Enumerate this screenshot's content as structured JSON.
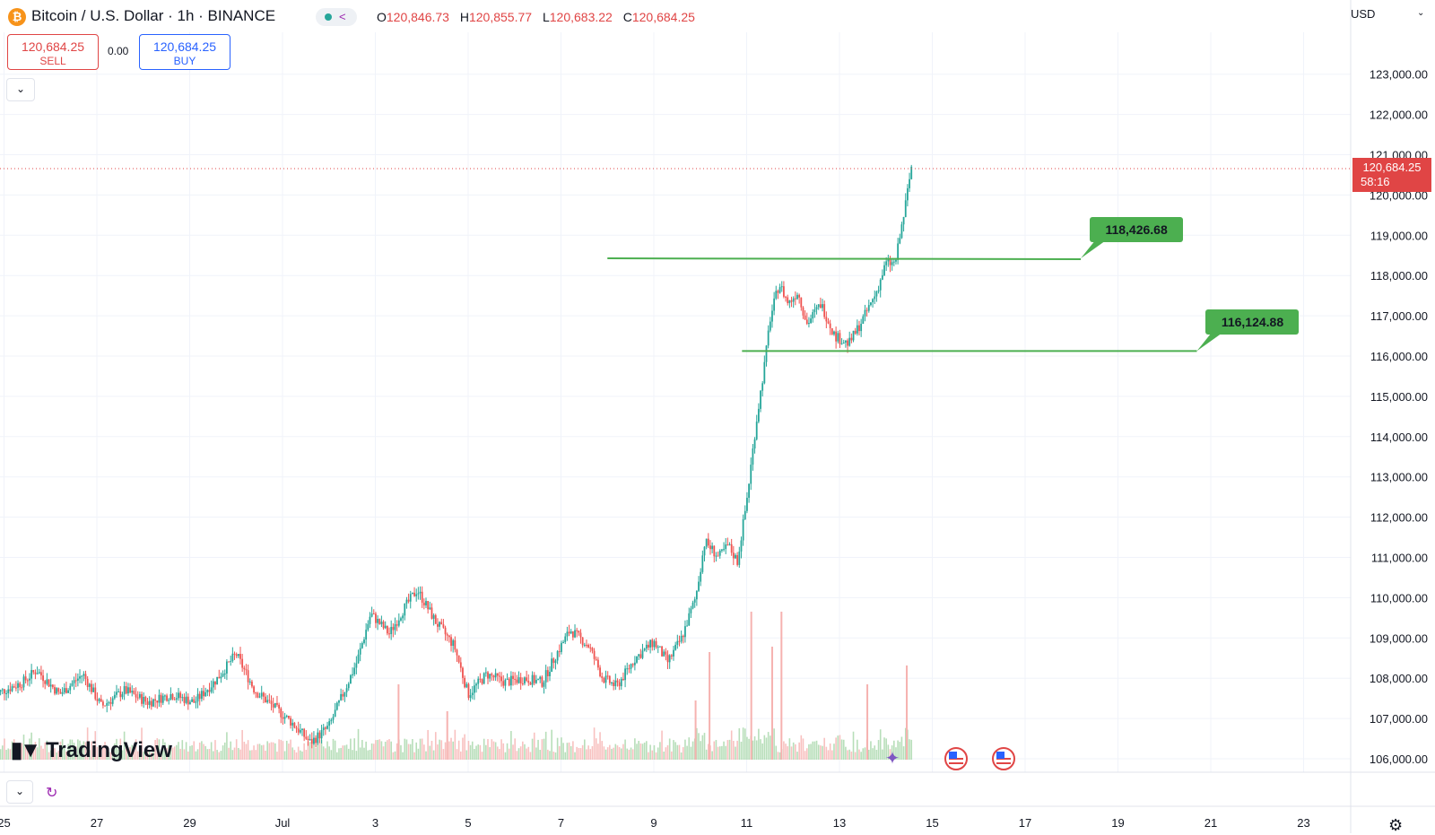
{
  "header": {
    "title": "Bitcoin / U.S. Dollar · 1h · BINANCE",
    "logo_letter": "₿",
    "ohlc": [
      {
        "label": "O",
        "value": "120,846.73"
      },
      {
        "label": "H",
        "value": "120,855.77"
      },
      {
        "label": "L",
        "value": "120,683.22"
      },
      {
        "label": "C",
        "value": "120,684.25"
      }
    ]
  },
  "trade": {
    "sell_price": "120,684.25",
    "sell_label": "SELL",
    "spread": "0.00",
    "buy_price": "120,684.25",
    "buy_label": "BUY"
  },
  "currency": "USD",
  "last_price": {
    "price": "120,684.25",
    "countdown": "58:16"
  },
  "branding": "TradingView",
  "colors": {
    "up": "#26a69a",
    "down": "#ef5350",
    "level": "#4caf50",
    "price_tag": "#e04545"
  },
  "icons": {
    "collapse": "chevron-down-icon",
    "reload": "reload-icon",
    "settings": "settings-icon",
    "event": "us-flag-icon"
  },
  "chart_data": {
    "type": "candlestick",
    "symbol": "BTCUSD",
    "interval": "1h",
    "ylim": [
      105700,
      124200
    ],
    "y_ticks": [
      "106,000.00",
      "107,000.00",
      "108,000.00",
      "109,000.00",
      "110,000.00",
      "111,000.00",
      "112,000.00",
      "113,000.00",
      "114,000.00",
      "115,000.00",
      "116,000.00",
      "117,000.00",
      "118,000.00",
      "119,000.00",
      "120,000.00",
      "121,000.00",
      "122,000.00",
      "123,000.00"
    ],
    "x_ticks": [
      "25",
      "27",
      "29",
      "Jul",
      "3",
      "5",
      "7",
      "9",
      "11",
      "13",
      "15",
      "17",
      "19",
      "21",
      "23"
    ],
    "x_tick_days": [
      -6,
      -4,
      -2,
      0,
      2,
      4,
      6,
      8,
      10,
      12,
      14,
      16,
      18,
      20,
      22
    ],
    "horizontal_levels": [
      {
        "price": 118426.68,
        "label": "118,426.68",
        "from_day": 7.0,
        "to_day": 17.2
      },
      {
        "price": 116124.88,
        "label": "116,124.88",
        "from_day": 9.9,
        "to_day": 19.7
      }
    ],
    "price_path": [
      [
        -6.2,
        107600
      ],
      [
        -5.6,
        107900
      ],
      [
        -5.3,
        108200
      ],
      [
        -4.8,
        107600
      ],
      [
        -4.3,
        108100
      ],
      [
        -3.9,
        107300
      ],
      [
        -3.4,
        107700
      ],
      [
        -2.9,
        107400
      ],
      [
        -2.4,
        107600
      ],
      [
        -1.9,
        107400
      ],
      [
        -1.4,
        108000
      ],
      [
        -1.0,
        108600
      ],
      [
        -0.6,
        107700
      ],
      [
        -0.2,
        107300
      ],
      [
        0.2,
        106900
      ],
      [
        0.6,
        106400
      ],
      [
        1.0,
        106800
      ],
      [
        1.3,
        107600
      ],
      [
        1.6,
        108400
      ],
      [
        1.9,
        109600
      ],
      [
        2.3,
        109100
      ],
      [
        2.6,
        109700
      ],
      [
        2.9,
        110200
      ],
      [
        3.3,
        109400
      ],
      [
        3.7,
        108800
      ],
      [
        4.0,
        107600
      ],
      [
        4.4,
        108100
      ],
      [
        4.8,
        107900
      ],
      [
        5.2,
        108000
      ],
      [
        5.6,
        107900
      ],
      [
        5.9,
        108600
      ],
      [
        6.2,
        109200
      ],
      [
        6.6,
        108800
      ],
      [
        6.9,
        108000
      ],
      [
        7.2,
        107800
      ],
      [
        7.6,
        108500
      ],
      [
        8.0,
        108900
      ],
      [
        8.3,
        108400
      ],
      [
        8.6,
        109000
      ],
      [
        8.9,
        110000
      ],
      [
        9.1,
        111400
      ],
      [
        9.4,
        111000
      ],
      [
        9.6,
        111300
      ],
      [
        9.8,
        110900
      ],
      [
        10.0,
        112400
      ],
      [
        10.2,
        114300
      ],
      [
        10.4,
        115900
      ],
      [
        10.5,
        116900
      ],
      [
        10.7,
        117800
      ],
      [
        10.9,
        117300
      ],
      [
        11.1,
        117600
      ],
      [
        11.3,
        116800
      ],
      [
        11.6,
        117300
      ],
      [
        11.9,
        116500
      ],
      [
        12.2,
        116300
      ],
      [
        12.5,
        116900
      ],
      [
        12.8,
        117600
      ],
      [
        13.0,
        118300
      ],
      [
        13.2,
        118300
      ],
      [
        13.4,
        119600
      ],
      [
        13.55,
        120700
      ]
    ],
    "volume_spikes": [
      {
        "day": 10.1,
        "rel": 0.55
      },
      {
        "day": 10.55,
        "rel": 0.42
      },
      {
        "day": 10.75,
        "rel": 0.55
      },
      {
        "day": 12.6,
        "rel": 0.28
      },
      {
        "day": 13.45,
        "rel": 0.35
      },
      {
        "day": 2.5,
        "rel": 0.28
      },
      {
        "day": 3.55,
        "rel": 0.18
      },
      {
        "day": 8.9,
        "rel": 0.22
      },
      {
        "day": 9.2,
        "rel": 0.4
      }
    ]
  }
}
